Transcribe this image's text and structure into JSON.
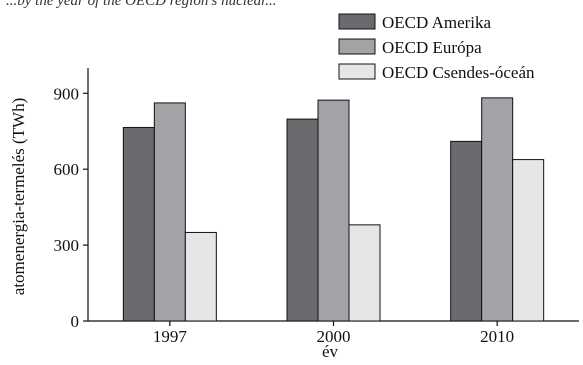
{
  "clipped_text": "...by the year of the OECD region's nuclear...",
  "chart_data": {
    "type": "bar",
    "categories": [
      "1997",
      "2000",
      "2010"
    ],
    "series": [
      {
        "name": "OECD Amerika",
        "values": [
          765,
          798,
          710
        ],
        "color": "#6b6b6f"
      },
      {
        "name": "OECD Európa",
        "values": [
          862,
          873,
          882
        ],
        "color": "#a3a3a7"
      },
      {
        "name": "OECD Csendes-óceán",
        "values": [
          350,
          380,
          638
        ],
        "color": "#e6e6e8"
      }
    ],
    "xlabel": "év",
    "ylabel": "atomenergia-termelés (TWh)",
    "ylim": [
      0,
      1000
    ],
    "yticks": [
      0,
      300,
      600,
      900
    ],
    "grid": false,
    "legend_position": "top-right"
  }
}
